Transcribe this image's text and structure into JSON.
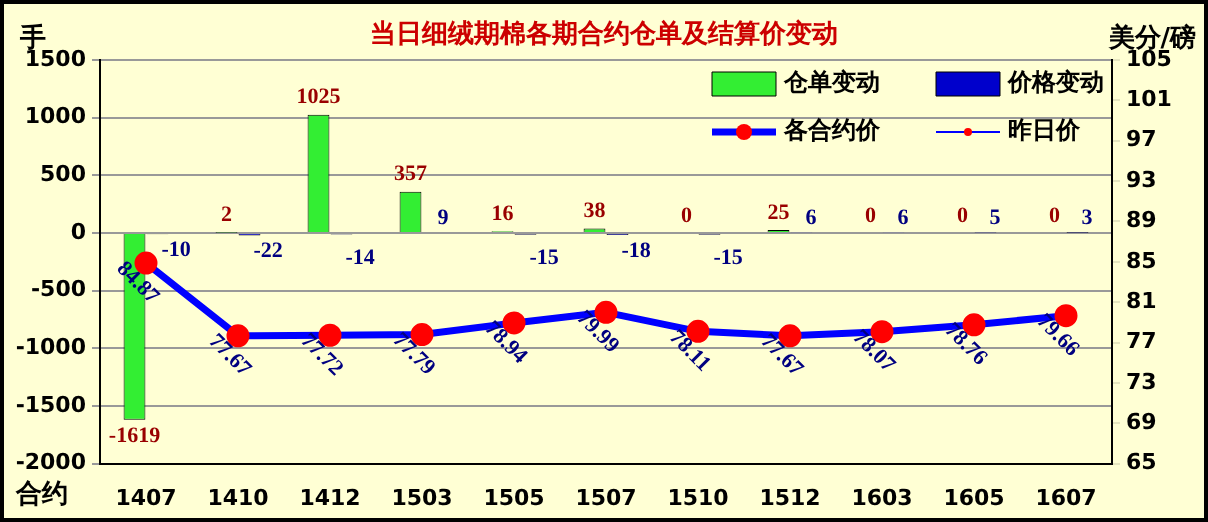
{
  "chart_data": {
    "type": "bar",
    "title": "当日细绒期棉各期合约仓单及结算价变动",
    "xlabel": "合约",
    "ylabel": "手",
    "y2label": "美分/磅",
    "categories": [
      "1407",
      "1410",
      "1412",
      "1503",
      "1505",
      "1507",
      "1510",
      "1512",
      "1603",
      "1605",
      "1607"
    ],
    "series": [
      {
        "name": "仓单变动",
        "color": "#33ee33",
        "values": [
          -1619,
          2,
          1025,
          357,
          16,
          38,
          0,
          25,
          0,
          0,
          0
        ],
        "value_labels": [
          "-1619",
          "2",
          "1025",
          "357",
          "16",
          "38",
          "0",
          "25",
          "0",
          "0",
          "0"
        ]
      },
      {
        "name": "价格变动",
        "color": "#0000cc",
        "values": [
          -10,
          -22,
          -14,
          9,
          -15,
          -18,
          -15,
          6,
          6,
          5,
          3
        ],
        "value_labels": [
          "-10",
          "-22",
          "-14",
          "9",
          "-15",
          "-18",
          "-15",
          "6",
          "6",
          "5",
          "3"
        ]
      },
      {
        "name": "各合约价",
        "type": "line",
        "axis": "y2",
        "color": "#0000ff",
        "marker": "circle",
        "values": [
          84.87,
          77.67,
          77.72,
          77.79,
          78.94,
          79.99,
          78.11,
          77.67,
          78.07,
          78.76,
          79.66
        ],
        "value_labels": [
          "84.87",
          "77.67",
          "77.72",
          "77.79",
          "78.94",
          "79.99",
          "78.11",
          "77.67",
          "78.07",
          "78.76",
          "79.66"
        ]
      },
      {
        "name": "昨日价",
        "type": "line",
        "axis": "y2",
        "color": "#0000ff",
        "marker": "circle",
        "values": [
          null,
          null,
          null,
          null,
          null,
          null,
          null,
          null,
          null,
          null,
          null
        ]
      }
    ],
    "ylim": [
      -2000,
      1500
    ],
    "yticks": [
      -2000,
      -1500,
      -1000,
      -500,
      0,
      500,
      1000,
      1500
    ],
    "y2lim": [
      65,
      105
    ],
    "y2ticks": [
      65,
      69,
      73,
      77,
      81,
      85,
      89,
      93,
      97,
      101,
      105
    ],
    "grid": "y",
    "legend": "top right",
    "line_style": "solid"
  }
}
